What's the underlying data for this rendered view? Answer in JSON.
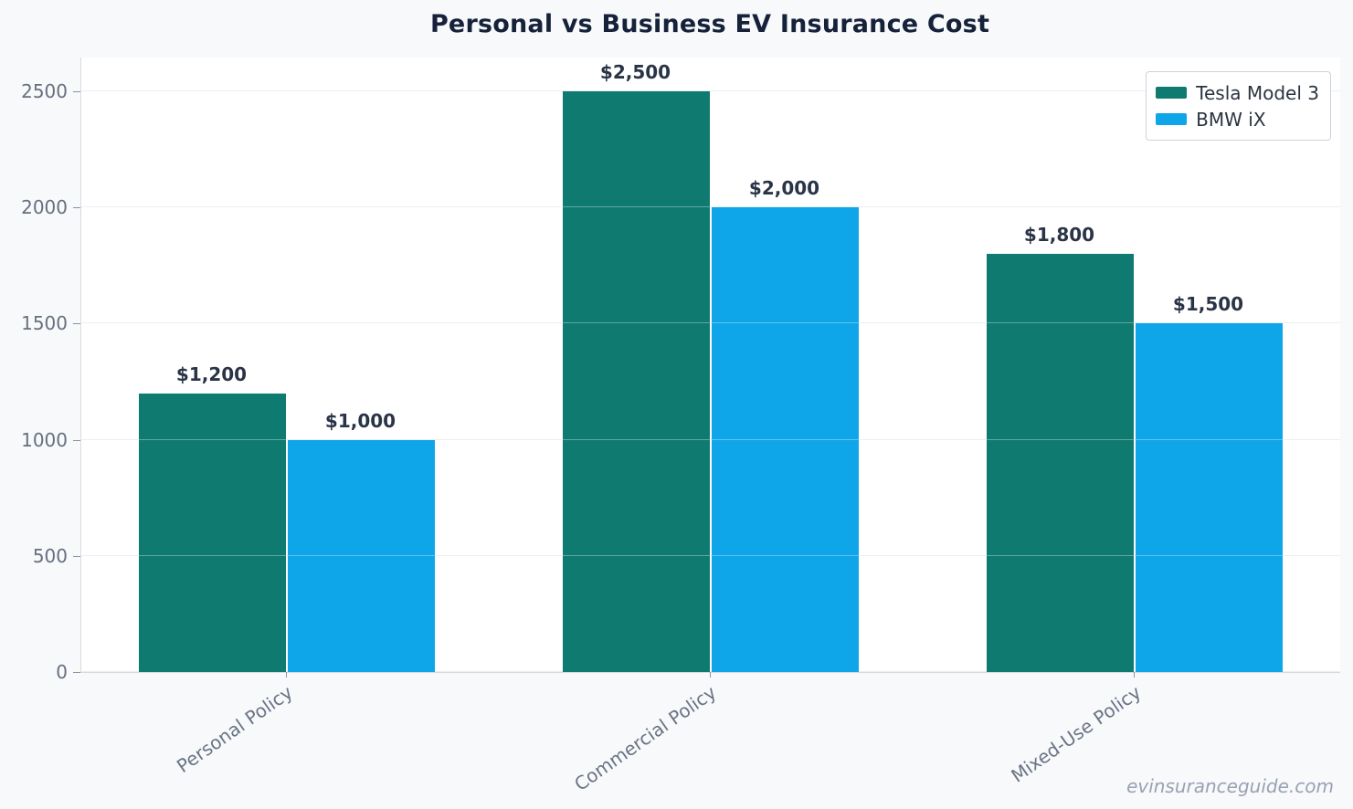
{
  "title": "Personal vs Business EV Insurance Cost",
  "watermark": "evinsuranceguide.com",
  "chart_data": {
    "type": "bar",
    "title": "Personal vs Business EV Insurance Cost",
    "categories": [
      "Personal Policy",
      "Commercial Policy",
      "Mixed-Use Policy"
    ],
    "series": [
      {
        "name": "Tesla Model 3",
        "color": "#0e7a70",
        "values": [
          1200,
          2500,
          1800
        ],
        "display_values": [
          "$1,200",
          "$2,500",
          "$1,800"
        ]
      },
      {
        "name": "BMW iX",
        "color": "#0ea5e9",
        "values": [
          1000,
          2000,
          1500
        ],
        "display_values": [
          "$1,000",
          "$2,000",
          "$1,500"
        ]
      }
    ],
    "xlabel": "",
    "ylabel": "",
    "ylim": [
      0,
      2646
    ],
    "yticks": [
      0,
      500,
      1000,
      1500,
      2000,
      2500
    ],
    "grid": true,
    "legend_position": "upper right"
  }
}
